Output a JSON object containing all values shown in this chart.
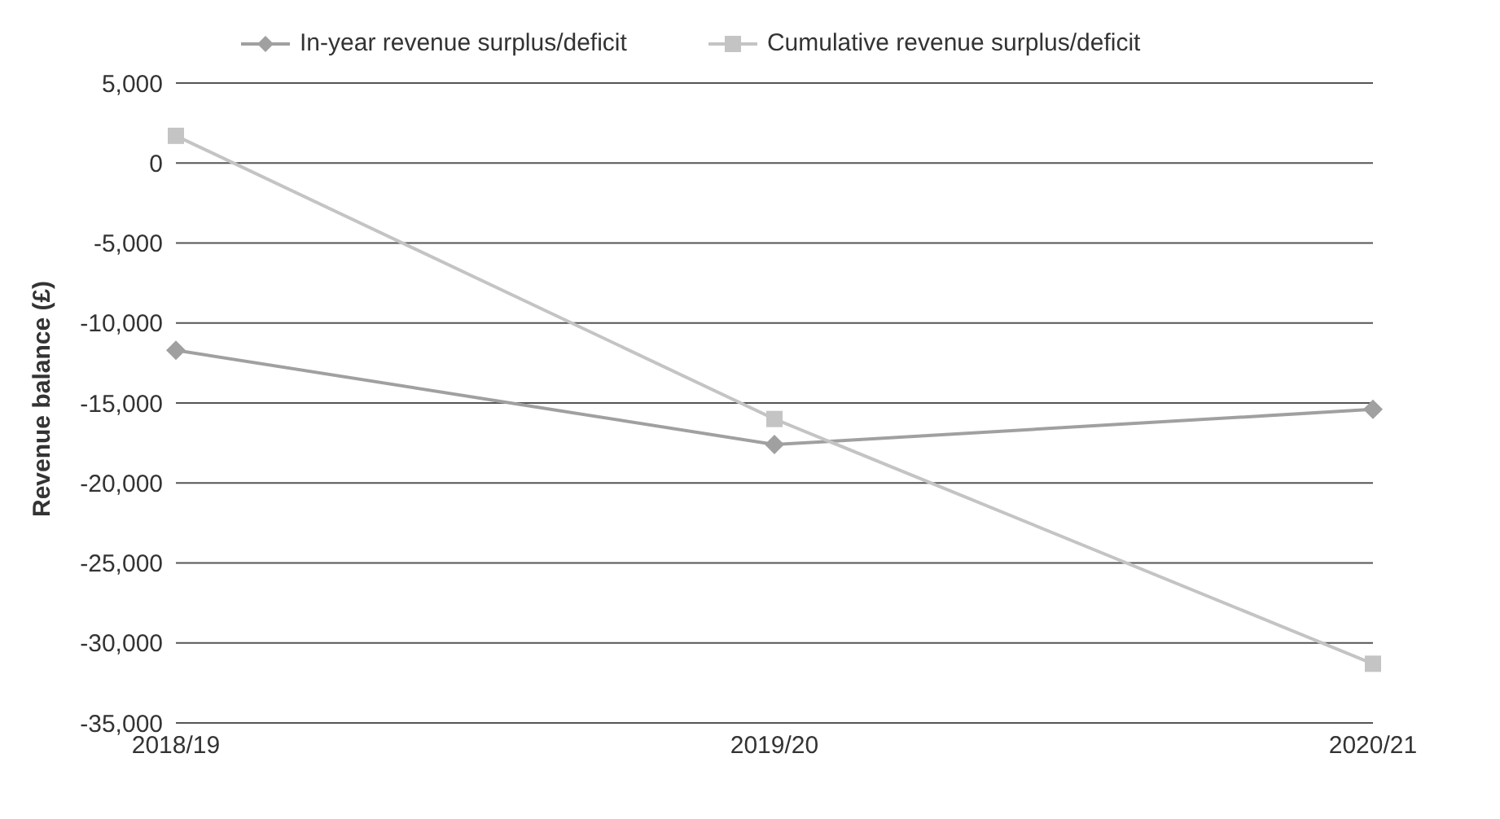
{
  "chart_data": {
    "type": "line",
    "ylabel": "Revenue balance (£)",
    "categories": [
      "2018/19",
      "2019/20",
      "2020/21"
    ],
    "series": [
      {
        "name": "In-year revenue surplus/deficit",
        "color": "#a0a0a0",
        "marker": "diamond",
        "values": [
          -11700,
          -17600,
          -15400
        ]
      },
      {
        "name": "Cumulative revenue surplus/deficit",
        "color": "#c4c4c4",
        "marker": "square",
        "values": [
          1700,
          -16000,
          -31300
        ]
      }
    ],
    "ylim": [
      -35000,
      5000
    ],
    "yticks": [
      {
        "value": -35000,
        "label": "-35,000"
      },
      {
        "value": -30000,
        "label": "-30,000"
      },
      {
        "value": -25000,
        "label": "-25,000"
      },
      {
        "value": -20000,
        "label": "-20,000"
      },
      {
        "value": -15000,
        "label": "-15,000"
      },
      {
        "value": -10000,
        "label": "-10,000"
      },
      {
        "value": -5000,
        "label": "-5,000"
      },
      0,
      {
        "value": 5000,
        "label": "5,000"
      }
    ],
    "grid": "y",
    "legend": "top"
  }
}
